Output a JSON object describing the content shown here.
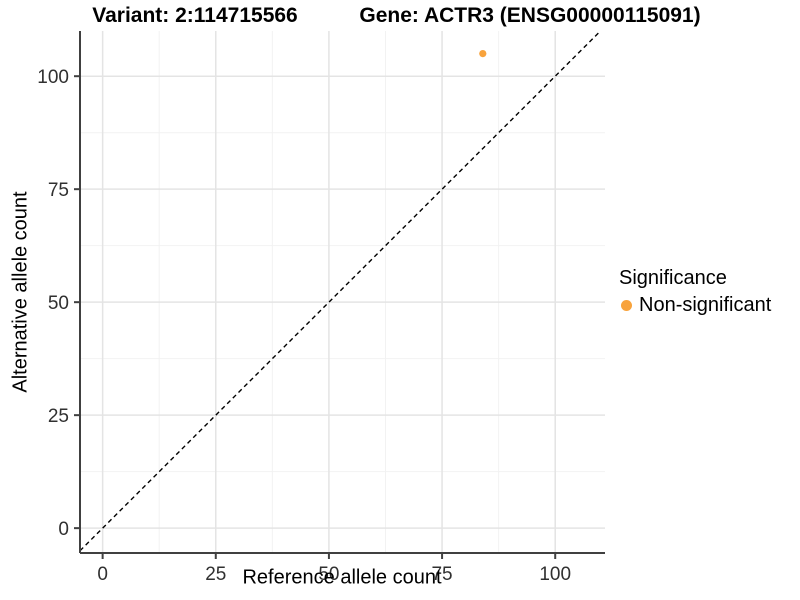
{
  "chart_data": {
    "type": "scatter",
    "title_left": "Variant: 2:114715566",
    "title_right": "Gene: ACTR3 (ENSG00000115091)",
    "xlabel": "Reference allele count",
    "ylabel": "Alternative allele count",
    "xlim": [
      -5,
      111
    ],
    "ylim": [
      -5.5,
      110
    ],
    "x_ticks": [
      0,
      25,
      50,
      75,
      100
    ],
    "y_ticks": [
      0,
      25,
      50,
      75,
      100
    ],
    "grid": {
      "show_major": true,
      "show_minor": true,
      "major_color": "#E4E4E4",
      "minor_color": "#F2F2F2",
      "background": "#FFFFFF"
    },
    "axis": {
      "line_color": "#404040",
      "tick_color": "#404040",
      "tick_label_color": "#303030"
    },
    "reference_line": {
      "kind": "identity_y_equals_x",
      "style": "dashed",
      "color": "#000000"
    },
    "series": [
      {
        "name": "Non-significant",
        "color": "#F8A33C",
        "points": [
          {
            "x": 84,
            "y": 105
          }
        ]
      }
    ],
    "legend": {
      "title": "Significance",
      "position": "right",
      "items": [
        {
          "label": "Non-significant",
          "color": "#F8A33C"
        }
      ]
    }
  }
}
